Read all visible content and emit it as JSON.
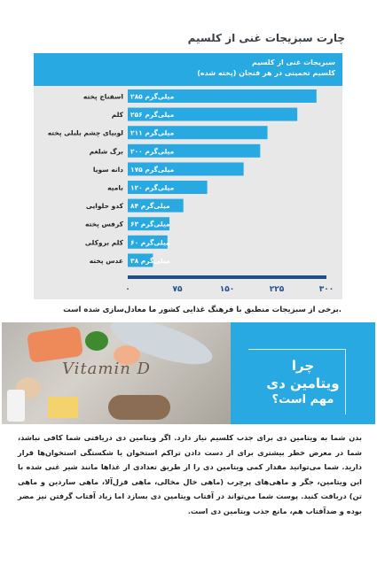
{
  "page": {
    "title": "چارت سبزیجات غنی از کلسیم",
    "caption": "برخی از سبزیجات منطبق با فرهنگ غذایی کشور ما معادل‌سازی شده است.",
    "vitamin_word": "Vitamin D",
    "question_line1": "چرا",
    "question_line2": "ویتامین دی",
    "question_line3": "مهم است؟",
    "body_paragraph": "بدن شما به ویتامین دی برای جذب کلسیم نیاز دارد. اگر ویتامین دی دریافتی شما کافی نباشد، شما در معرض خطر بیشتری برای از دست دادن تراکم استخوان یا شکستگی استخوان‌ها قرار دارید. شما می‌توانید مقدار کمی ویتامین دی را از طریق تعدادی از غذاها مانند شیر غنی شده با این ویتامین، جگر و ماهی‌های پرچرب (ماهی خال مخالی، ماهی قزل‌آلا، ماهی ساردین و ماهی تن) دریافت کنید. پوست شما می‌تواند در آفتاب ویتامین دی بسازد اما زیاد آفتاب گرفتن نیز مضر بوده و ضدآفتاب هم، مانع جذب ویتامین دی است."
  },
  "colors": {
    "accent": "#29a9e1",
    "bar": "#29a9e1",
    "axis": "#1f4e8c",
    "panel": "#e8e8e8"
  },
  "chart_data": {
    "type": "bar",
    "orientation": "horizontal",
    "title": "سبزیجات غنی از کلسیم",
    "subtitle": "کلسیم تخمینی در هر فنجان (پخته شده)",
    "categories": [
      "اسفناج پخته",
      "کلم",
      "لوبیای چشم بلبلی پخته",
      "برگ شلغم",
      "دانه سویا",
      "بامیه",
      "کدو حلوایی",
      "کرفس پخته",
      "کلم بروکلی",
      "عدس پخته"
    ],
    "values": [
      285,
      256,
      211,
      200,
      175,
      120,
      84,
      63,
      60,
      38
    ],
    "value_labels": [
      "۲۸۵ میلی‌گرم",
      "۲۵۶ میلی‌گرم",
      "۲۱۱ میلی‌گرم",
      "۲۰۰ میلی‌گرم",
      "۱۷۵ میلی‌گرم",
      "۱۲۰ میلی‌گرم",
      "۸۴ میلی‌گرم",
      "۶۳ میلی‌گرم",
      "۶۰ میلی‌گرم",
      "۳۸ میلی‌گرم"
    ],
    "xlim": [
      0,
      300
    ],
    "xticks": [
      0,
      75,
      150,
      225,
      300
    ],
    "xtick_labels": [
      "۰",
      "۷۵",
      "۱۵۰",
      "۲۲۵",
      "۳۰۰"
    ],
    "grid": false
  }
}
